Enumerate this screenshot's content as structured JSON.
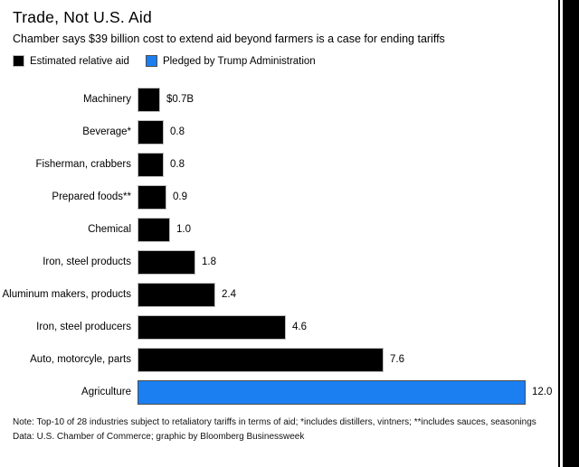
{
  "chart_data": {
    "type": "bar",
    "orientation": "horizontal",
    "title": "Trade, Not U.S. Aid",
    "subtitle": "Chamber says $39 billion cost to extend aid beyond farmers is a case for ending tariffs",
    "xlim": [
      0,
      12
    ],
    "grid": false,
    "legend_position": "top",
    "categories": [
      "Machinery",
      "Beverage*",
      "Fisherman, crabbers",
      "Prepared foods**",
      "Chemical",
      "Iron, steel products",
      "Aluminum makers, products",
      "Iron, steel producers",
      "Auto, motorcyle, parts",
      "Agriculture"
    ],
    "values": [
      0.7,
      0.8,
      0.8,
      0.9,
      1.0,
      1.8,
      2.4,
      4.6,
      7.6,
      12.0
    ],
    "value_labels": [
      "$0.7B",
      "0.8",
      "0.8",
      "0.9",
      "1.0",
      "1.8",
      "2.4",
      "4.6",
      "7.6",
      "12.0"
    ],
    "bar_colors": [
      "#000000",
      "#000000",
      "#000000",
      "#000000",
      "#000000",
      "#000000",
      "#000000",
      "#000000",
      "#000000",
      "#1b7ff2"
    ],
    "series": [
      {
        "name": "Estimated relative aid",
        "color": "#000000"
      },
      {
        "name": "Pledged by Trump Administration",
        "color": "#1b7ff2"
      }
    ]
  },
  "notes": {
    "note": "Note: Top-10 of 28 industries subject to retaliatory tariffs in terms of aid; *includes distillers, vintners; **includes sauces, seasonings",
    "source": "Data: U.S. Chamber of Commerce; graphic by Bloomberg Businessweek"
  }
}
